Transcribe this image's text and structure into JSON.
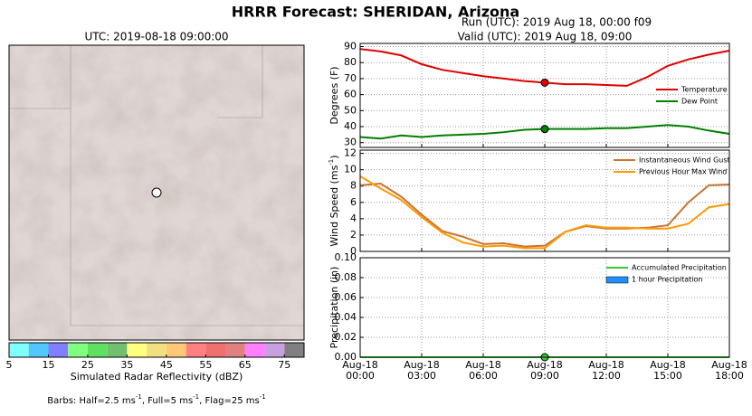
{
  "title": "HRRR Forecast: SHERIDAN, Arizona",
  "run": "Run (UTC): 2019 Aug 18, 00:00 f09",
  "valid": "Valid (UTC): 2019 Aug 18, 09:00",
  "map": {
    "title": "UTC: 2019-08-18 09:00:00"
  },
  "colorbar": {
    "label": "Simulated Radar Reflectivity (dBZ)",
    "range": [
      5,
      80
    ],
    "ticks": [
      5,
      15,
      25,
      35,
      45,
      55,
      65,
      75
    ],
    "colors": [
      "#80ffff",
      "#50c8ff",
      "#8080ff",
      "#80ff80",
      "#60e060",
      "#70c070",
      "#ffff80",
      "#f0e080",
      "#ffc878",
      "#ff8080",
      "#f07070",
      "#e08080",
      "#ff80ff",
      "#c8a0e0",
      "#808080"
    ]
  },
  "barbs_note": [
    "Barbs: Half=2.5 ms",
    "-1",
    ", Full=5 ms",
    "-1",
    ", Flag=25 ms",
    "-1"
  ],
  "chart_data": [
    {
      "type": "line",
      "ylabel": [
        "Degrees (F)"
      ],
      "x": [
        0,
        1,
        2,
        3,
        4,
        5,
        6,
        7,
        8,
        9,
        10,
        11,
        12,
        13,
        14,
        15,
        16,
        17,
        18
      ],
      "xlim": [
        0,
        18
      ],
      "ylim": [
        27,
        92
      ],
      "yticks": [
        30,
        40,
        50,
        60,
        70,
        80,
        90
      ],
      "grid": true,
      "legend": "lower right",
      "marker_x": 9,
      "series": [
        {
          "name": "Temperature",
          "color": "#e00000",
          "values": [
            88.5,
            87,
            84.5,
            79,
            75.5,
            73.5,
            71.5,
            70,
            68.5,
            67.5,
            66.5,
            66.5,
            66,
            65.5,
            71,
            78,
            82,
            85,
            87.5
          ]
        },
        {
          "name": "Dew Point",
          "color": "#008000",
          "values": [
            33.5,
            32.5,
            34.5,
            33.5,
            34.5,
            35,
            35.5,
            36.5,
            38,
            38.5,
            38.5,
            38.5,
            39,
            39,
            40,
            41,
            40,
            37.5,
            35.5
          ]
        }
      ]
    },
    {
      "type": "line",
      "ylabel": [
        "Wind Speed (ms",
        "-1",
        ")"
      ],
      "x": [
        0,
        1,
        2,
        3,
        4,
        5,
        6,
        7,
        8,
        9,
        10,
        11,
        12,
        13,
        14,
        15,
        16,
        17,
        18
      ],
      "xlim": [
        0,
        18
      ],
      "ylim": [
        0,
        12.4
      ],
      "yticks": [
        0,
        2,
        4,
        6,
        8,
        10,
        12
      ],
      "grid": true,
      "legend": "upper right",
      "series": [
        {
          "name": "Instantaneous Wind Gust",
          "color": "#c87533",
          "values": [
            8.1,
            8.3,
            6.7,
            4.5,
            2.5,
            1.8,
            0.9,
            1.0,
            0.6,
            0.7,
            2.4,
            3.1,
            2.8,
            2.8,
            2.9,
            3.2,
            6.0,
            8.1,
            8.2
          ]
        },
        {
          "name": "Previous Hour Max Wind",
          "color": "#ff9900",
          "values": [
            9.2,
            7.7,
            6.3,
            4.2,
            2.3,
            1.1,
            0.6,
            0.7,
            0.4,
            0.4,
            2.4,
            3.2,
            2.9,
            2.9,
            2.8,
            2.8,
            3.4,
            5.4,
            5.8
          ]
        }
      ]
    },
    {
      "type": "line",
      "ylabel": [
        "Precipitation (in)"
      ],
      "x": [
        0,
        1,
        2,
        3,
        4,
        5,
        6,
        7,
        8,
        9,
        10,
        11,
        12,
        13,
        14,
        15,
        16,
        17,
        18
      ],
      "xlim": [
        0,
        18
      ],
      "xticks": [
        {
          "value": 0,
          "label": "Aug-18\n00:00"
        },
        {
          "value": 3,
          "label": "Aug-18\n03:00"
        },
        {
          "value": 6,
          "label": "Aug-18\n06:00"
        },
        {
          "value": 9,
          "label": "Aug-18\n09:00"
        },
        {
          "value": 12,
          "label": "Aug-18\n12:00"
        },
        {
          "value": 15,
          "label": "Aug-18\n15:00"
        },
        {
          "value": 18,
          "label": "Aug-18\n18:00"
        }
      ],
      "ylim": [
        0,
        0.1
      ],
      "yticks": [
        {
          "value": 0,
          "label": "0.00"
        },
        {
          "value": 0.02,
          "label": "0.02"
        },
        {
          "value": 0.04,
          "label": "0.04"
        },
        {
          "value": 0.06,
          "label": "0.06"
        },
        {
          "value": 0.08,
          "label": "0.08"
        },
        {
          "value": 0.1,
          "label": "0.10"
        }
      ],
      "grid": true,
      "legend": "upper right",
      "marker_x": 9,
      "series": [
        {
          "name": "Accumulated Precipitation",
          "color": "#33cc33",
          "values": [
            0,
            0,
            0,
            0,
            0,
            0,
            0,
            0,
            0,
            0,
            0,
            0,
            0,
            0,
            0,
            0,
            0,
            0,
            0
          ]
        },
        {
          "name": "1 hour Precipitation",
          "color": "#1e90ff",
          "type": "bar",
          "values": [
            0,
            0,
            0,
            0,
            0,
            0,
            0,
            0,
            0,
            0,
            0,
            0,
            0,
            0,
            0,
            0,
            0,
            0,
            0
          ]
        }
      ]
    }
  ]
}
